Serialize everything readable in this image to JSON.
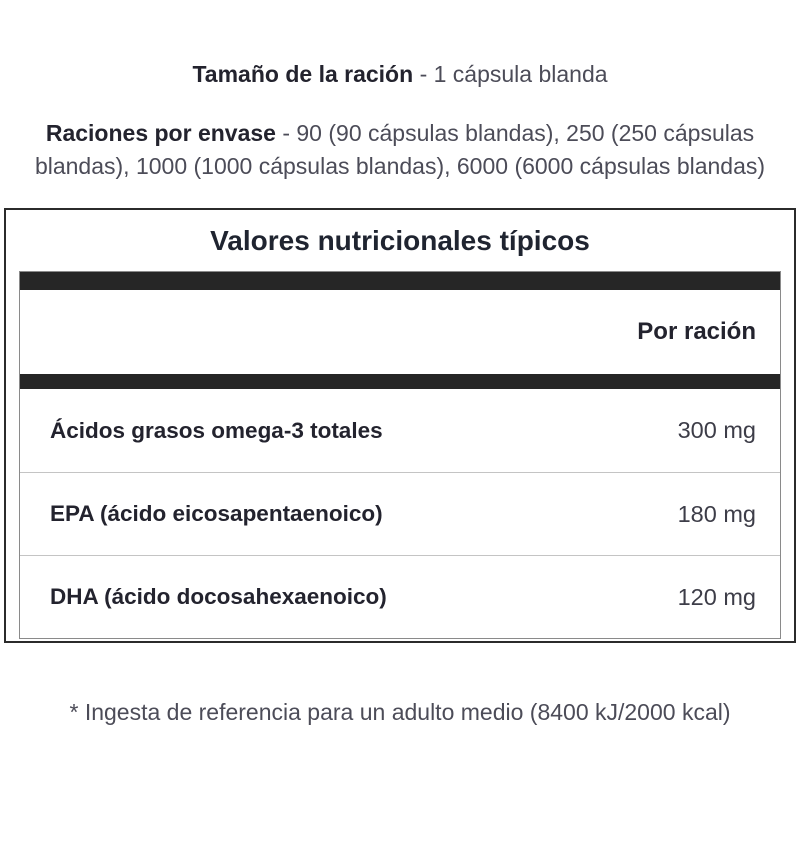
{
  "serving_size": {
    "label": "Tamaño de la ración",
    "value": "- 1 cápsula blanda"
  },
  "servings_per_container": {
    "label": "Raciones por envase",
    "value": "- 90 (90 cápsulas blandas), 250 (250 cápsulas blandas), 1000 (1000 cápsulas blandas), 6000 (6000 cápsulas blandas)"
  },
  "table": {
    "title": "Valores nutricionales típicos",
    "column_header": "Por ración",
    "rows": [
      {
        "nutrient": "Ácidos grasos omega-3 totales",
        "amount": "300 mg"
      },
      {
        "nutrient": "EPA (ácido eicosapentaenoico)",
        "amount": "180 mg"
      },
      {
        "nutrient": "DHA (ácido docosahexaenoico)",
        "amount": "120 mg"
      }
    ]
  },
  "footnote": "* Ingesta de referencia para un adulto medio (8400 kJ/2000 kcal)",
  "colors": {
    "text_dark": "#23232e",
    "text_gray": "#4c4c58",
    "title_dark": "#1f2430",
    "bar": "#262626",
    "outer_border": "#2b2b2b",
    "inner_border": "#8a8a8a",
    "row_separator": "#c4c4c4",
    "background": "#ffffff"
  }
}
